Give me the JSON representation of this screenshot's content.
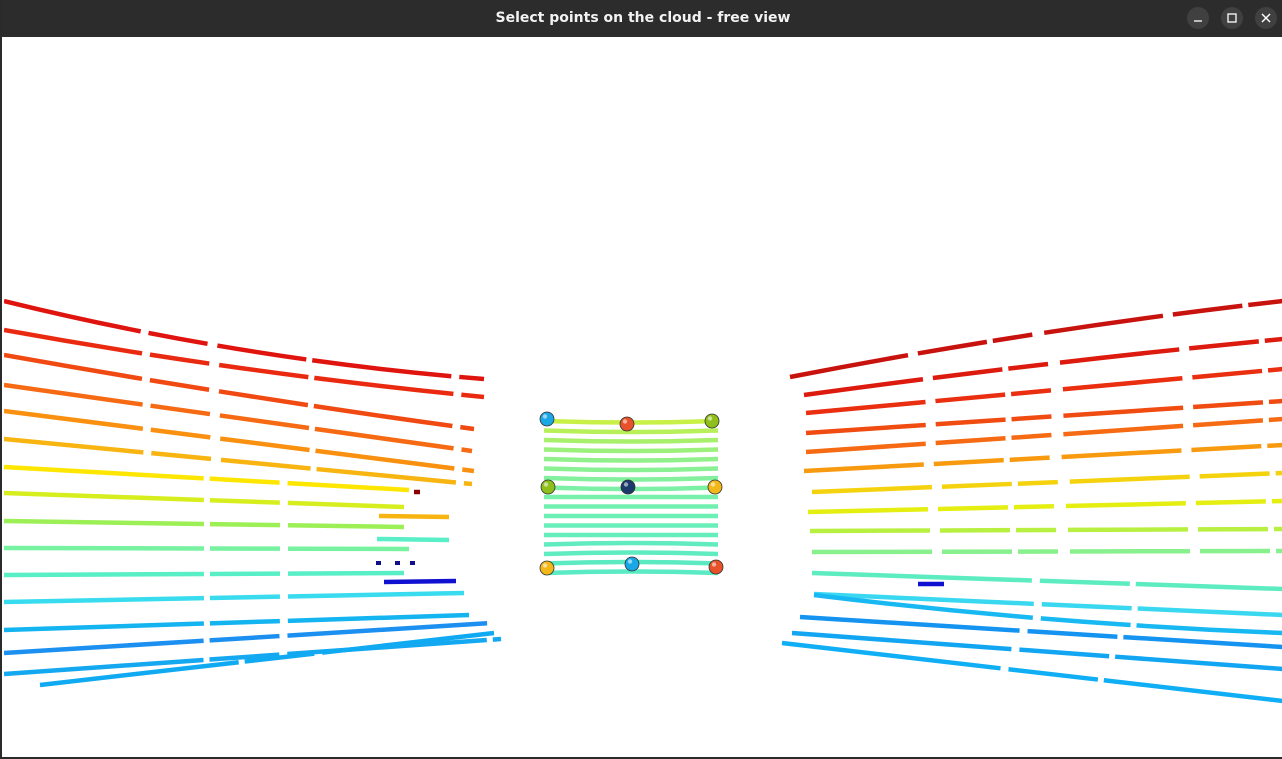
{
  "window": {
    "title": "Select points on the cloud - free view",
    "buttons": [
      {
        "name": "minimize",
        "icon": "minimize-icon"
      },
      {
        "name": "maximize",
        "icon": "maximize-icon"
      },
      {
        "name": "close",
        "icon": "close-icon"
      }
    ]
  },
  "scene": {
    "background": "#ffffff",
    "colormap": "jet",
    "picked_points": [
      {
        "color": "#1aa7e6"
      },
      {
        "color": "#e8522a"
      },
      {
        "color": "#8fbf1a"
      },
      {
        "color": "#8fbf1a"
      },
      {
        "color": "#1b3a6b"
      },
      {
        "color": "#f2b81a"
      },
      {
        "color": "#f2b81a"
      },
      {
        "color": "#1aa7e6"
      },
      {
        "color": "#e8522a"
      }
    ]
  }
}
